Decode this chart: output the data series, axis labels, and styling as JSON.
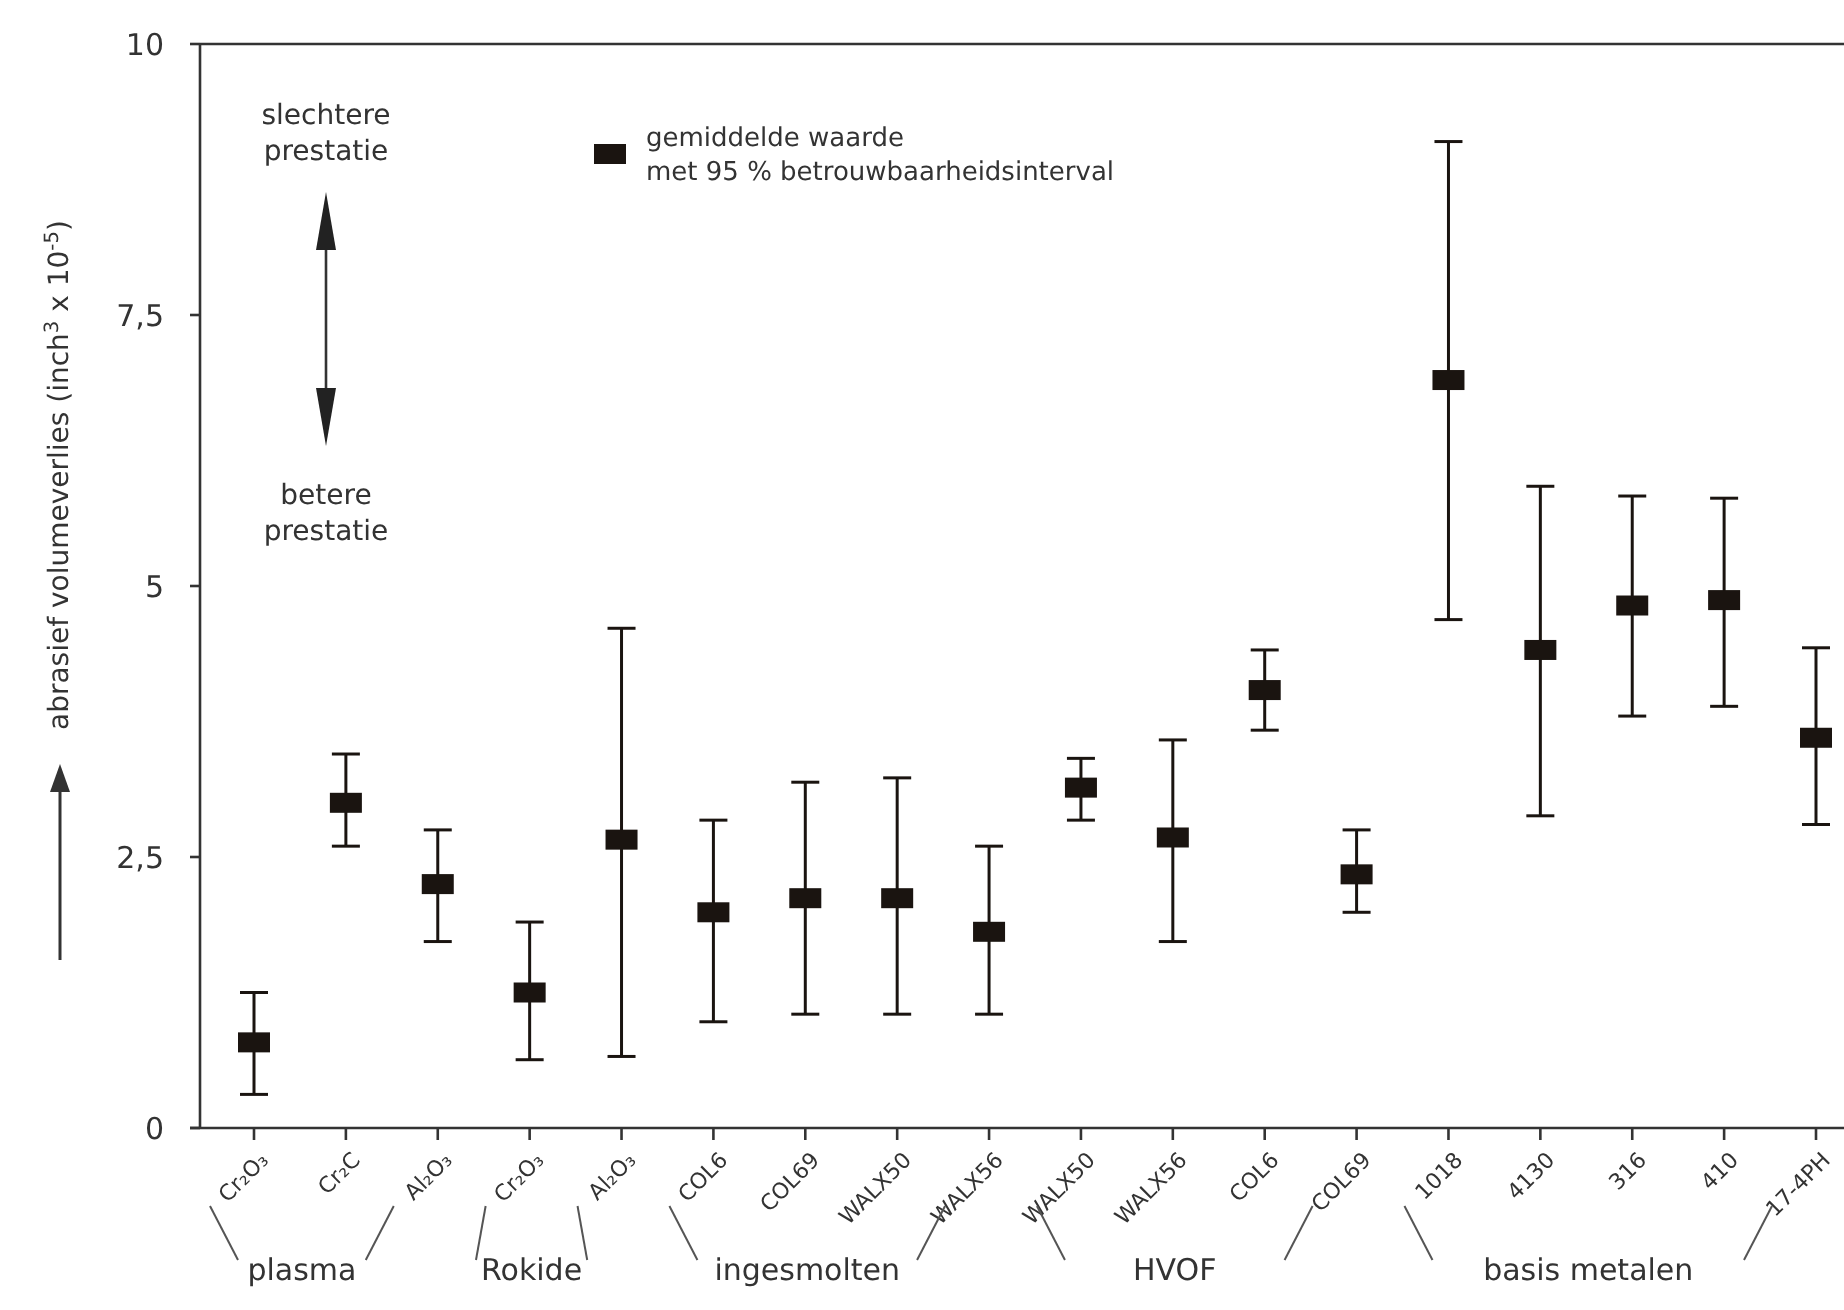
{
  "chart_data": {
    "type": "scatter",
    "ylabel": "abrasief volumeverlies (inch$^{3}$ x 10$^{-5}$)",
    "categories": [
      "Cr₂O₃",
      "Cr₂C",
      "Al₂O₃",
      "Cr₂O₃",
      "Al₂O₃",
      "COL6",
      "COL69",
      "WALX50",
      "WALX56",
      "WALX50",
      "WALX56",
      "COL6",
      "COL69",
      "1018",
      "4130",
      "316",
      "410",
      "17-4PH"
    ],
    "series": [
      {
        "name": "gemiddelde waarde met 95 % betrouwbaarheidsinterval",
        "color": "#1a1410",
        "values": [
          0.79,
          3.0,
          2.25,
          1.25,
          2.66,
          1.99,
          2.12,
          2.12,
          1.81,
          3.14,
          2.68,
          4.04,
          2.34,
          6.9,
          4.41,
          4.82,
          4.87,
          3.6
        ],
        "errors": [
          [
            0.31,
            1.25
          ],
          [
            2.6,
            3.45
          ],
          [
            1.72,
            2.75
          ],
          [
            0.63,
            1.9
          ],
          [
            0.66,
            4.61
          ],
          [
            0.98,
            2.84
          ],
          [
            1.05,
            3.19
          ],
          [
            1.05,
            3.23
          ],
          [
            1.05,
            2.6
          ],
          [
            2.84,
            3.41
          ],
          [
            1.72,
            3.58
          ],
          [
            3.67,
            4.41
          ],
          [
            1.99,
            2.75
          ],
          [
            4.69,
            9.1
          ],
          [
            2.88,
            5.92
          ],
          [
            3.8,
            5.83
          ],
          [
            3.89,
            5.81
          ],
          [
            2.8,
            4.43
          ]
        ]
      }
    ],
    "ylim": [
      0,
      10
    ],
    "yticks": [
      0,
      {
        "value": 2.5,
        "label": "2,5"
      },
      5,
      {
        "value": 7.5,
        "label": "7,5"
      },
      10
    ],
    "marker": "square",
    "legend": "top left",
    "grid": false,
    "annotations": [
      "slechtere prestatie",
      "betere prestatie",
      "plasma",
      "Rokide",
      "ingesmolten",
      "HVOF",
      "basis metalen"
    ]
  }
}
